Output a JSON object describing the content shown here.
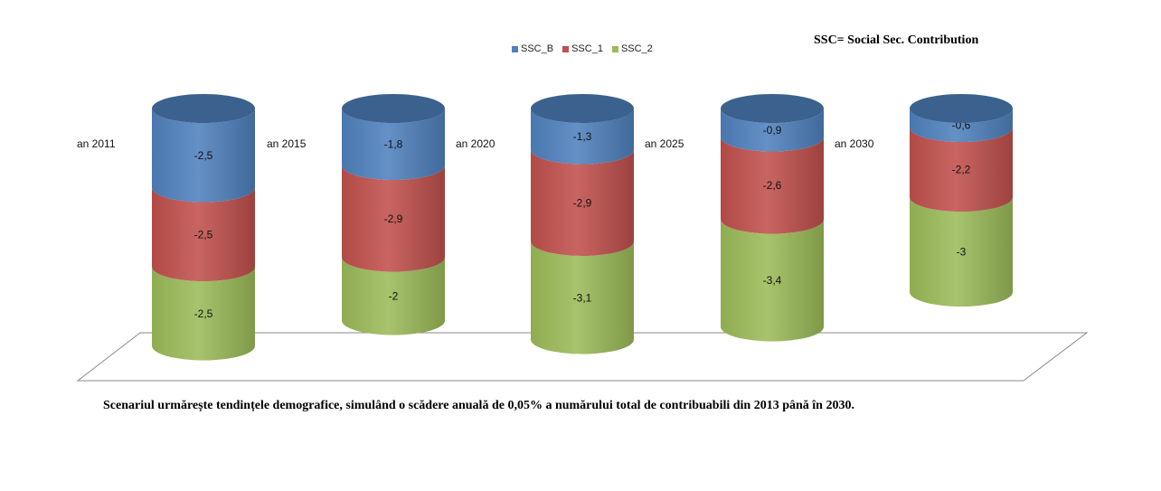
{
  "note": "SSC= Social Sec. Contribution",
  "caption": "Scenariul  urmărește tendințele demografice, simulând o scădere anuală  de 0,05% a numărului total de contribuabili din 2013 până în 2030.",
  "legend": [
    {
      "name": "SSC_B",
      "color": "#4F81BD"
    },
    {
      "name": "SSC_1",
      "color": "#C0504D"
    },
    {
      "name": "SSC_2",
      "color": "#9BBB59"
    }
  ],
  "chart_data": {
    "type": "bar",
    "stacked": true,
    "style": "3d-cylinder",
    "categories": [
      "an 2011",
      "an 2015",
      "an 2020",
      "an 2025",
      "an 2030"
    ],
    "series": [
      {
        "name": "SSC_B",
        "color": "#4F81BD",
        "values": [
          -2.5,
          -1.8,
          -1.3,
          -0.9,
          -0.6
        ],
        "labels": [
          "-2,5",
          "-1,8",
          "-1,3",
          "-0,9",
          "-0,6"
        ]
      },
      {
        "name": "SSC_1",
        "color": "#C0504D",
        "values": [
          -2.5,
          -2.9,
          -2.9,
          -2.6,
          -2.2
        ],
        "labels": [
          "-2,5",
          "-2,9",
          "-2,9",
          "-2,6",
          "-2,2"
        ]
      },
      {
        "name": "SSC_2",
        "color": "#9BBB59",
        "values": [
          -2.5,
          -2.0,
          -3.1,
          -3.4,
          -3.0
        ],
        "labels": [
          "-2,5",
          "-2",
          "-3,1",
          "-3,4",
          "-3"
        ]
      }
    ],
    "legend_position": "top",
    "grid": false
  }
}
